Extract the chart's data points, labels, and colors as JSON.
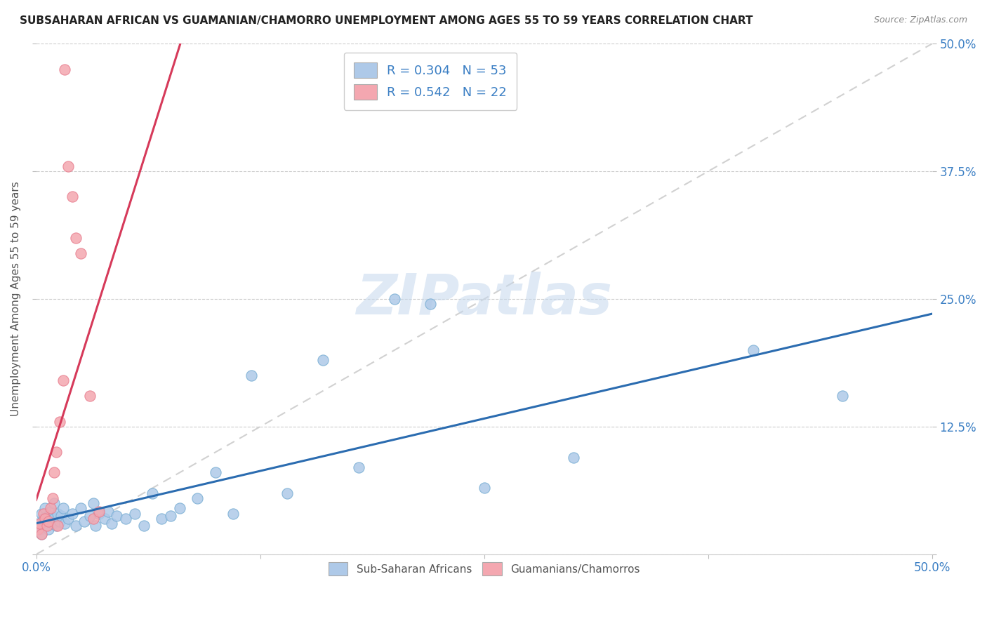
{
  "title": "SUBSAHARAN AFRICAN VS GUAMANIAN/CHAMORRO UNEMPLOYMENT AMONG AGES 55 TO 59 YEARS CORRELATION CHART",
  "source": "Source: ZipAtlas.com",
  "ylabel": "Unemployment Among Ages 55 to 59 years",
  "xlim": [
    0,
    0.5
  ],
  "ylim": [
    0,
    0.5
  ],
  "xticks": [
    0.0,
    0.125,
    0.25,
    0.375,
    0.5
  ],
  "xticklabels": [
    "0.0%",
    "",
    "",
    "",
    "50.0%"
  ],
  "yticks": [
    0.0,
    0.125,
    0.25,
    0.375,
    0.5
  ],
  "left_yticklabels": [
    "",
    "",
    "",
    "",
    ""
  ],
  "right_yticklabels": [
    "",
    "12.5%",
    "25.0%",
    "37.5%",
    "50.0%"
  ],
  "blue_color": "#aec9e8",
  "pink_color": "#f4a7b0",
  "blue_edge_color": "#7aafd4",
  "pink_edge_color": "#e87f90",
  "blue_line_color": "#2b6cb0",
  "pink_line_color": "#d63a5a",
  "diag_color": "#cccccc",
  "legend_R1": "R = 0.304",
  "legend_N1": "N = 53",
  "legend_R2": "R = 0.542",
  "legend_N2": "N = 22",
  "watermark": "ZIPatlas",
  "blue_scatter_x": [
    0.001,
    0.002,
    0.003,
    0.003,
    0.004,
    0.005,
    0.005,
    0.006,
    0.007,
    0.007,
    0.008,
    0.009,
    0.01,
    0.01,
    0.011,
    0.012,
    0.013,
    0.014,
    0.015,
    0.016,
    0.018,
    0.02,
    0.022,
    0.025,
    0.027,
    0.03,
    0.032,
    0.033,
    0.035,
    0.038,
    0.04,
    0.042,
    0.045,
    0.05,
    0.055,
    0.06,
    0.065,
    0.07,
    0.075,
    0.08,
    0.09,
    0.1,
    0.11,
    0.12,
    0.14,
    0.16,
    0.18,
    0.2,
    0.22,
    0.25,
    0.3,
    0.4,
    0.45
  ],
  "blue_scatter_y": [
    0.03,
    0.025,
    0.04,
    0.02,
    0.035,
    0.028,
    0.045,
    0.032,
    0.038,
    0.025,
    0.042,
    0.03,
    0.035,
    0.05,
    0.028,
    0.04,
    0.032,
    0.038,
    0.045,
    0.03,
    0.035,
    0.04,
    0.028,
    0.045,
    0.032,
    0.038,
    0.05,
    0.028,
    0.04,
    0.035,
    0.042,
    0.03,
    0.038,
    0.035,
    0.04,
    0.028,
    0.06,
    0.035,
    0.038,
    0.045,
    0.055,
    0.08,
    0.04,
    0.175,
    0.06,
    0.19,
    0.085,
    0.25,
    0.245,
    0.065,
    0.095,
    0.2,
    0.155
  ],
  "pink_scatter_x": [
    0.001,
    0.002,
    0.003,
    0.004,
    0.005,
    0.006,
    0.007,
    0.008,
    0.009,
    0.01,
    0.011,
    0.012,
    0.013,
    0.015,
    0.016,
    0.018,
    0.02,
    0.022,
    0.025,
    0.03,
    0.032,
    0.035
  ],
  "pink_scatter_y": [
    0.025,
    0.03,
    0.02,
    0.04,
    0.035,
    0.028,
    0.032,
    0.045,
    0.055,
    0.08,
    0.1,
    0.028,
    0.13,
    0.17,
    0.475,
    0.38,
    0.35,
    0.31,
    0.295,
    0.155,
    0.035,
    0.042
  ],
  "bg_color": "#ffffff",
  "grid_color": "#cccccc",
  "title_color": "#222222",
  "axis_label_color": "#555555",
  "tick_color": "#3b7fc4",
  "bottom_legend_labels": [
    "Sub-Saharan Africans",
    "Guamanians/Chamorros"
  ]
}
